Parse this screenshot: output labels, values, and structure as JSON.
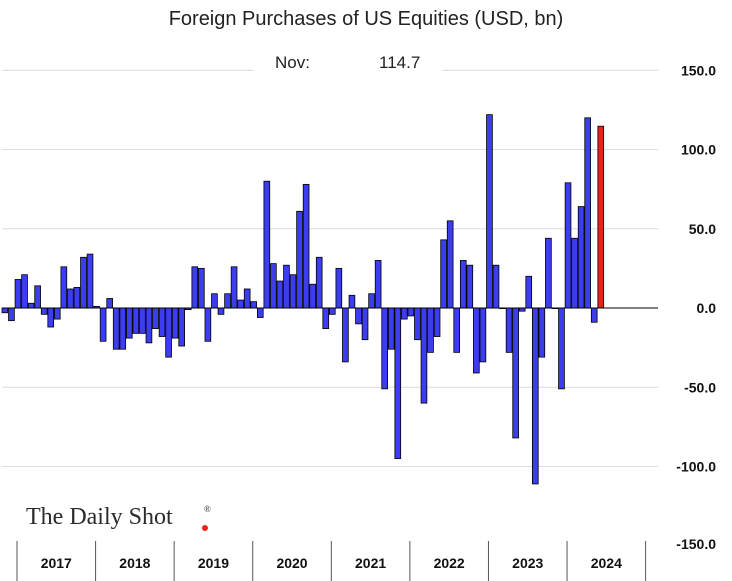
{
  "chart_data": {
    "type": "bar",
    "title": "Foreign Purchases of US Equities (USD, bn)",
    "annotation": {
      "label": "Nov:",
      "value": "114.7"
    },
    "xlabel": "",
    "ylabel": "",
    "ylim": [
      -150,
      150
    ],
    "yticks": [
      150,
      100,
      50,
      0,
      -50,
      -100,
      -150
    ],
    "ytick_labels": [
      "150.0",
      "100.0",
      "50.0",
      "0.0",
      "-50.0",
      "-100.0",
      "-150.0"
    ],
    "year_labels": [
      "2017",
      "2018",
      "2019",
      "2020",
      "2021",
      "2022",
      "2023",
      "2024"
    ],
    "months_per_year": 12,
    "grid": true,
    "axis_position": "right",
    "highlight_last": true,
    "colors": {
      "bar": "#3d3df0",
      "bar_edge": "#000000",
      "highlight": "#e8231a",
      "grid": "#dcdcdc",
      "logo_dot": "#e8231a"
    },
    "values": [
      -3,
      -8,
      18,
      21,
      3,
      14,
      -4,
      -12,
      -7,
      26,
      12,
      13,
      32,
      34,
      1,
      -21,
      6,
      -26,
      -26,
      -19,
      -16,
      -16,
      -22,
      -13,
      -18,
      -31,
      -19,
      -24,
      -1,
      26,
      25,
      -21,
      9,
      -4,
      9,
      26,
      5,
      12,
      4,
      -6,
      80,
      28,
      17,
      27,
      21,
      61,
      78,
      15,
      32,
      -13,
      -4,
      25,
      -34,
      8,
      -10,
      -20,
      9,
      30,
      -51,
      -26,
      -95,
      -7,
      -5,
      -20,
      -60,
      -28,
      -18,
      43,
      55,
      -28,
      30,
      27,
      -41,
      -34,
      122,
      27,
      0,
      -28,
      -82,
      -2,
      20,
      -111,
      -31,
      44,
      0,
      -51,
      79,
      44,
      64,
      120,
      -9,
      114.7
    ]
  },
  "watermark": {
    "text": "The Daily Shot",
    "mark": "®"
  }
}
